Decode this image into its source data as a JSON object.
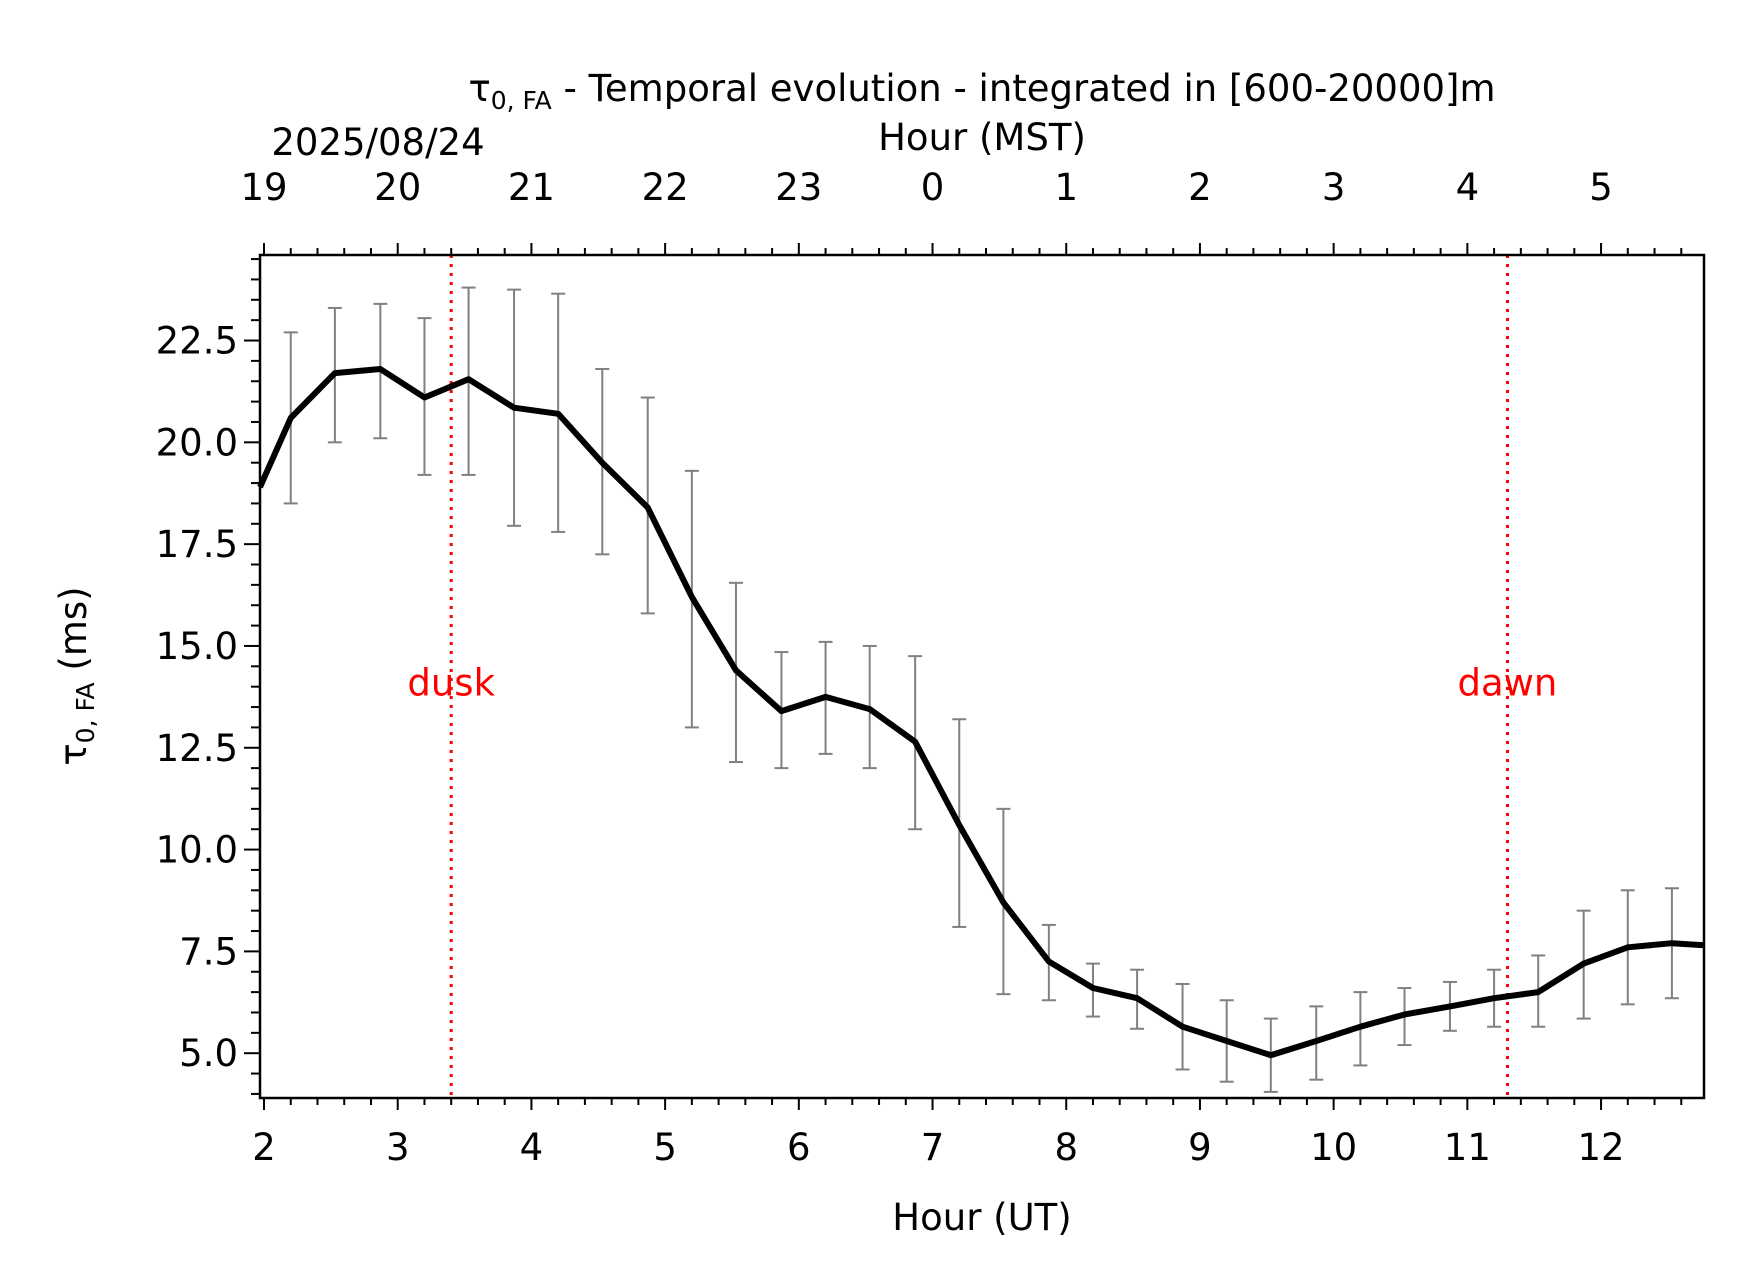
{
  "chart_data": {
    "type": "line",
    "title_symbol": "τ",
    "title_symbol_sub": "0, FA",
    "title_rest": " - Temporal evolution - integrated in [600-20000]m",
    "date_label": "2025/08/24",
    "xlabel": "Hour (UT)",
    "x2label": "Hour (MST)",
    "ylabel_symbol": "τ",
    "ylabel_sub": "0, FA",
    "ylabel_rest": " (ms)",
    "xlim": [
      1.97,
      12.77
    ],
    "ylim": [
      3.9,
      24.6
    ],
    "xticks": [
      2,
      3,
      4,
      5,
      6,
      7,
      8,
      9,
      10,
      11,
      12
    ],
    "xtick_labels": [
      "2",
      "3",
      "4",
      "5",
      "6",
      "7",
      "8",
      "9",
      "10",
      "11",
      "12"
    ],
    "x2tick_labels": [
      "19",
      "20",
      "21",
      "22",
      "23",
      "0",
      "1",
      "2",
      "3",
      "4",
      "5"
    ],
    "yticks": [
      5.0,
      7.5,
      10.0,
      12.5,
      15.0,
      17.5,
      20.0,
      22.5
    ],
    "ytick_labels": [
      "5.0",
      "7.5",
      "10.0",
      "12.5",
      "15.0",
      "17.5",
      "20.0",
      "22.5"
    ],
    "grid": false,
    "series": [
      {
        "color": "#000000",
        "errorbar_color": "#808080",
        "x": [
          1.97,
          2.2,
          2.53,
          2.87,
          3.2,
          3.53,
          3.87,
          4.2,
          4.53,
          4.87,
          5.2,
          5.53,
          5.87,
          6.2,
          6.53,
          6.87,
          7.2,
          7.53,
          7.87,
          8.2,
          8.53,
          8.87,
          9.2,
          9.53,
          9.87,
          10.2,
          10.53,
          10.87,
          11.2,
          11.53,
          11.87,
          12.2,
          12.53,
          12.77
        ],
        "y": [
          18.9,
          20.6,
          21.7,
          21.8,
          21.1,
          21.55,
          20.85,
          20.7,
          19.5,
          18.4,
          16.2,
          14.4,
          13.4,
          13.75,
          13.45,
          12.65,
          10.6,
          8.7,
          7.25,
          6.6,
          6.35,
          5.65,
          5.3,
          4.95,
          5.3,
          5.65,
          5.95,
          6.15,
          6.35,
          6.5,
          7.2,
          7.6,
          7.7,
          7.65
        ],
        "err_low": [
          null,
          18.5,
          20.0,
          20.1,
          19.2,
          19.2,
          17.95,
          17.8,
          17.25,
          15.8,
          13.0,
          12.15,
          12.0,
          12.35,
          12.0,
          10.5,
          8.1,
          6.45,
          6.3,
          5.9,
          5.6,
          4.6,
          4.3,
          4.05,
          4.35,
          4.7,
          5.2,
          5.55,
          5.65,
          5.65,
          5.85,
          6.2,
          6.35,
          null
        ],
        "err_high": [
          null,
          22.7,
          23.3,
          23.4,
          23.05,
          23.8,
          23.75,
          23.65,
          21.8,
          21.1,
          19.3,
          16.55,
          14.85,
          15.1,
          15.0,
          14.75,
          13.2,
          11.0,
          8.15,
          7.2,
          7.05,
          6.7,
          6.3,
          5.85,
          6.15,
          6.5,
          6.6,
          6.75,
          7.05,
          7.4,
          8.5,
          9.0,
          9.05,
          null
        ]
      }
    ],
    "annotations": [
      {
        "text": "dusk",
        "x": 3.4,
        "color": "#ff0000",
        "label_y": 14.1
      },
      {
        "text": "dawn",
        "x": 11.3,
        "color": "#ff0000",
        "label_y": 14.1
      }
    ]
  }
}
